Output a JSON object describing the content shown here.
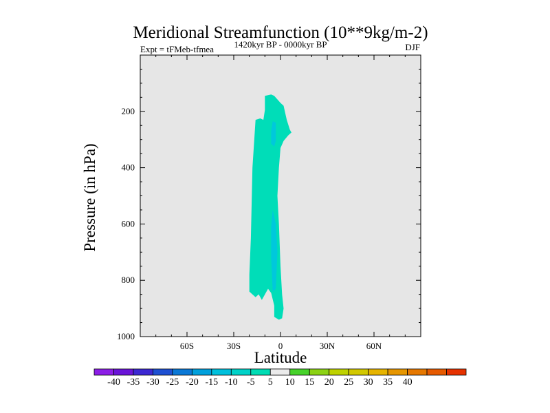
{
  "chart_data": {
    "type": "filled-contour",
    "title": "Meridional Streamfunction (10**9kg/m-2)",
    "subtitle_left": "Expt = tFMeb-tfmea",
    "subtitle_center": "1420kyr BP - 0000kyr BP",
    "subtitle_right": "DJF",
    "xlabel": "Latitude",
    "ylabel": "Pressure (in hPa)",
    "xlim": [
      -90,
      90
    ],
    "ylim": [
      1000,
      0
    ],
    "x_ticks": [
      {
        "value": -60,
        "label": "60S"
      },
      {
        "value": -30,
        "label": "30S"
      },
      {
        "value": 0,
        "label": "0"
      },
      {
        "value": 30,
        "label": "30N"
      },
      {
        "value": 60,
        "label": "60N"
      }
    ],
    "y_ticks": [
      {
        "value": 200,
        "label": "200"
      },
      {
        "value": 400,
        "label": "400"
      },
      {
        "value": 600,
        "label": "600"
      },
      {
        "value": 800,
        "label": "800"
      },
      {
        "value": 1000,
        "label": "1000"
      }
    ],
    "background_color": "#e6e6e6",
    "regions": [
      {
        "name": "negative-weak",
        "level": "-10 to -5",
        "color": "#00ddb8",
        "boundary": [
          [
            -10,
            145
          ],
          [
            -6,
            140
          ],
          [
            -4,
            145
          ],
          [
            0,
            170
          ],
          [
            2,
            180
          ],
          [
            4,
            230
          ],
          [
            6,
            265
          ],
          [
            7,
            275
          ],
          [
            5,
            285
          ],
          [
            2,
            305
          ],
          [
            0,
            330
          ],
          [
            -1,
            400
          ],
          [
            -2,
            500
          ],
          [
            -1,
            600
          ],
          [
            0,
            750
          ],
          [
            1,
            850
          ],
          [
            2,
            900
          ],
          [
            1,
            935
          ],
          [
            -1,
            940
          ],
          [
            -4,
            930
          ],
          [
            -4,
            890
          ],
          [
            -6,
            845
          ],
          [
            -8,
            830
          ],
          [
            -12,
            870
          ],
          [
            -14,
            850
          ],
          [
            -16,
            860
          ],
          [
            -20,
            840
          ],
          [
            -20,
            780
          ],
          [
            -19,
            650
          ],
          [
            -18,
            400
          ],
          [
            -16,
            230
          ],
          [
            -13,
            225
          ],
          [
            -11,
            230
          ],
          [
            -10,
            195
          ]
        ]
      },
      {
        "name": "negative-moderate-upper",
        "level": "-15 to -10",
        "color": "#00c8dc",
        "boundary": [
          [
            -5,
            235
          ],
          [
            -3,
            240
          ],
          [
            -3,
            305
          ],
          [
            -4,
            325
          ],
          [
            -6,
            315
          ],
          [
            -6,
            270
          ]
        ]
      },
      {
        "name": "negative-moderate-lower",
        "level": "-15 to -10",
        "color": "#00c8dc",
        "boundary": [
          [
            -5,
            550
          ],
          [
            -3,
            600
          ],
          [
            -2,
            700
          ],
          [
            -3,
            830
          ],
          [
            -5,
            840
          ],
          [
            -6,
            720
          ],
          [
            -6,
            610
          ]
        ]
      }
    ],
    "colorbar": {
      "labels": [
        "-40",
        "-35",
        "-30",
        "-25",
        "-20",
        "-15",
        "-10",
        "-5",
        "5",
        "10",
        "15",
        "20",
        "25",
        "30",
        "35",
        "40"
      ],
      "colors": [
        "#8c1ee6",
        "#6a14d8",
        "#3c28d2",
        "#1e50d2",
        "#0a78d6",
        "#00a0dc",
        "#00c0dc",
        "#00d2c8",
        "#00dcb4",
        "#ebebeb",
        "#46d22a",
        "#8cd214",
        "#bed200",
        "#d2c800",
        "#e6b400",
        "#e69600",
        "#e67800",
        "#e65a00",
        "#e63200"
      ]
    }
  }
}
